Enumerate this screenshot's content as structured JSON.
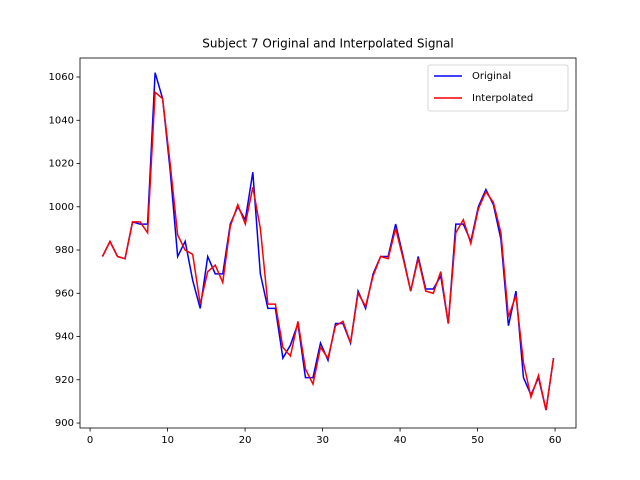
{
  "chart_data": {
    "type": "line",
    "title": "Subject 7 Original and Interpolated Signal",
    "x": [
      1.6,
      2.57,
      3.54,
      4.51,
      5.48,
      6.45,
      7.42,
      8.39,
      9.36,
      10.33,
      11.3,
      12.27,
      13.24,
      14.21,
      15.18,
      16.15,
      17.12,
      18.09,
      19.06,
      20.03,
      21.0,
      21.97,
      22.94,
      23.91,
      24.88,
      25.85,
      26.82,
      27.79,
      28.76,
      29.73,
      30.7,
      31.67,
      32.64,
      33.61,
      34.58,
      35.55,
      36.52,
      37.49,
      38.46,
      39.43,
      40.4,
      41.37,
      42.34,
      43.31,
      44.28,
      45.25,
      46.22,
      47.19,
      48.16,
      49.13,
      50.1,
      51.07,
      52.04,
      53.01,
      53.98,
      54.95,
      55.92,
      56.89,
      57.86,
      58.83,
      59.8
    ],
    "series": [
      {
        "name": "Original",
        "color": "#0000ff",
        "values": [
          977,
          984,
          977,
          976,
          993,
          992,
          992,
          1062,
          1050,
          1017,
          977,
          984,
          966,
          953,
          977,
          969,
          969,
          992,
          1000,
          994,
          1016,
          969,
          953,
          953,
          930,
          936,
          946,
          921,
          921,
          937,
          929,
          946,
          946,
          937,
          961,
          953,
          969,
          977,
          977,
          992,
          977,
          961,
          977,
          962,
          962,
          968,
          946,
          992,
          992,
          984,
          1000,
          1008,
          1001,
          985,
          945,
          961,
          921,
          913,
          921,
          906,
          930
        ]
      },
      {
        "name": "Interpolated",
        "color": "#ff0000",
        "values": [
          977,
          984,
          977,
          976,
          993,
          993,
          988,
          1053,
          1050,
          1020,
          987,
          980,
          978,
          955,
          970,
          973,
          965,
          991,
          1001,
          992,
          1009,
          990,
          955,
          955,
          935,
          931,
          947,
          925,
          918,
          935,
          930,
          945,
          947,
          937,
          960,
          954,
          968,
          977,
          976,
          990,
          976,
          961,
          976,
          961,
          960,
          970,
          946,
          988,
          994,
          983,
          999,
          1007,
          1002,
          988,
          949,
          959,
          928,
          912,
          922,
          906,
          930
        ]
      }
    ],
    "xlim": [
      -1.3,
      62.7
    ],
    "ylim": [
      897.7,
      1068.8
    ],
    "xticks": [
      0,
      10,
      20,
      30,
      40,
      50,
      60
    ],
    "yticks": [
      900,
      920,
      940,
      960,
      980,
      1000,
      1020,
      1040,
      1060
    ],
    "legend": "upper right"
  }
}
